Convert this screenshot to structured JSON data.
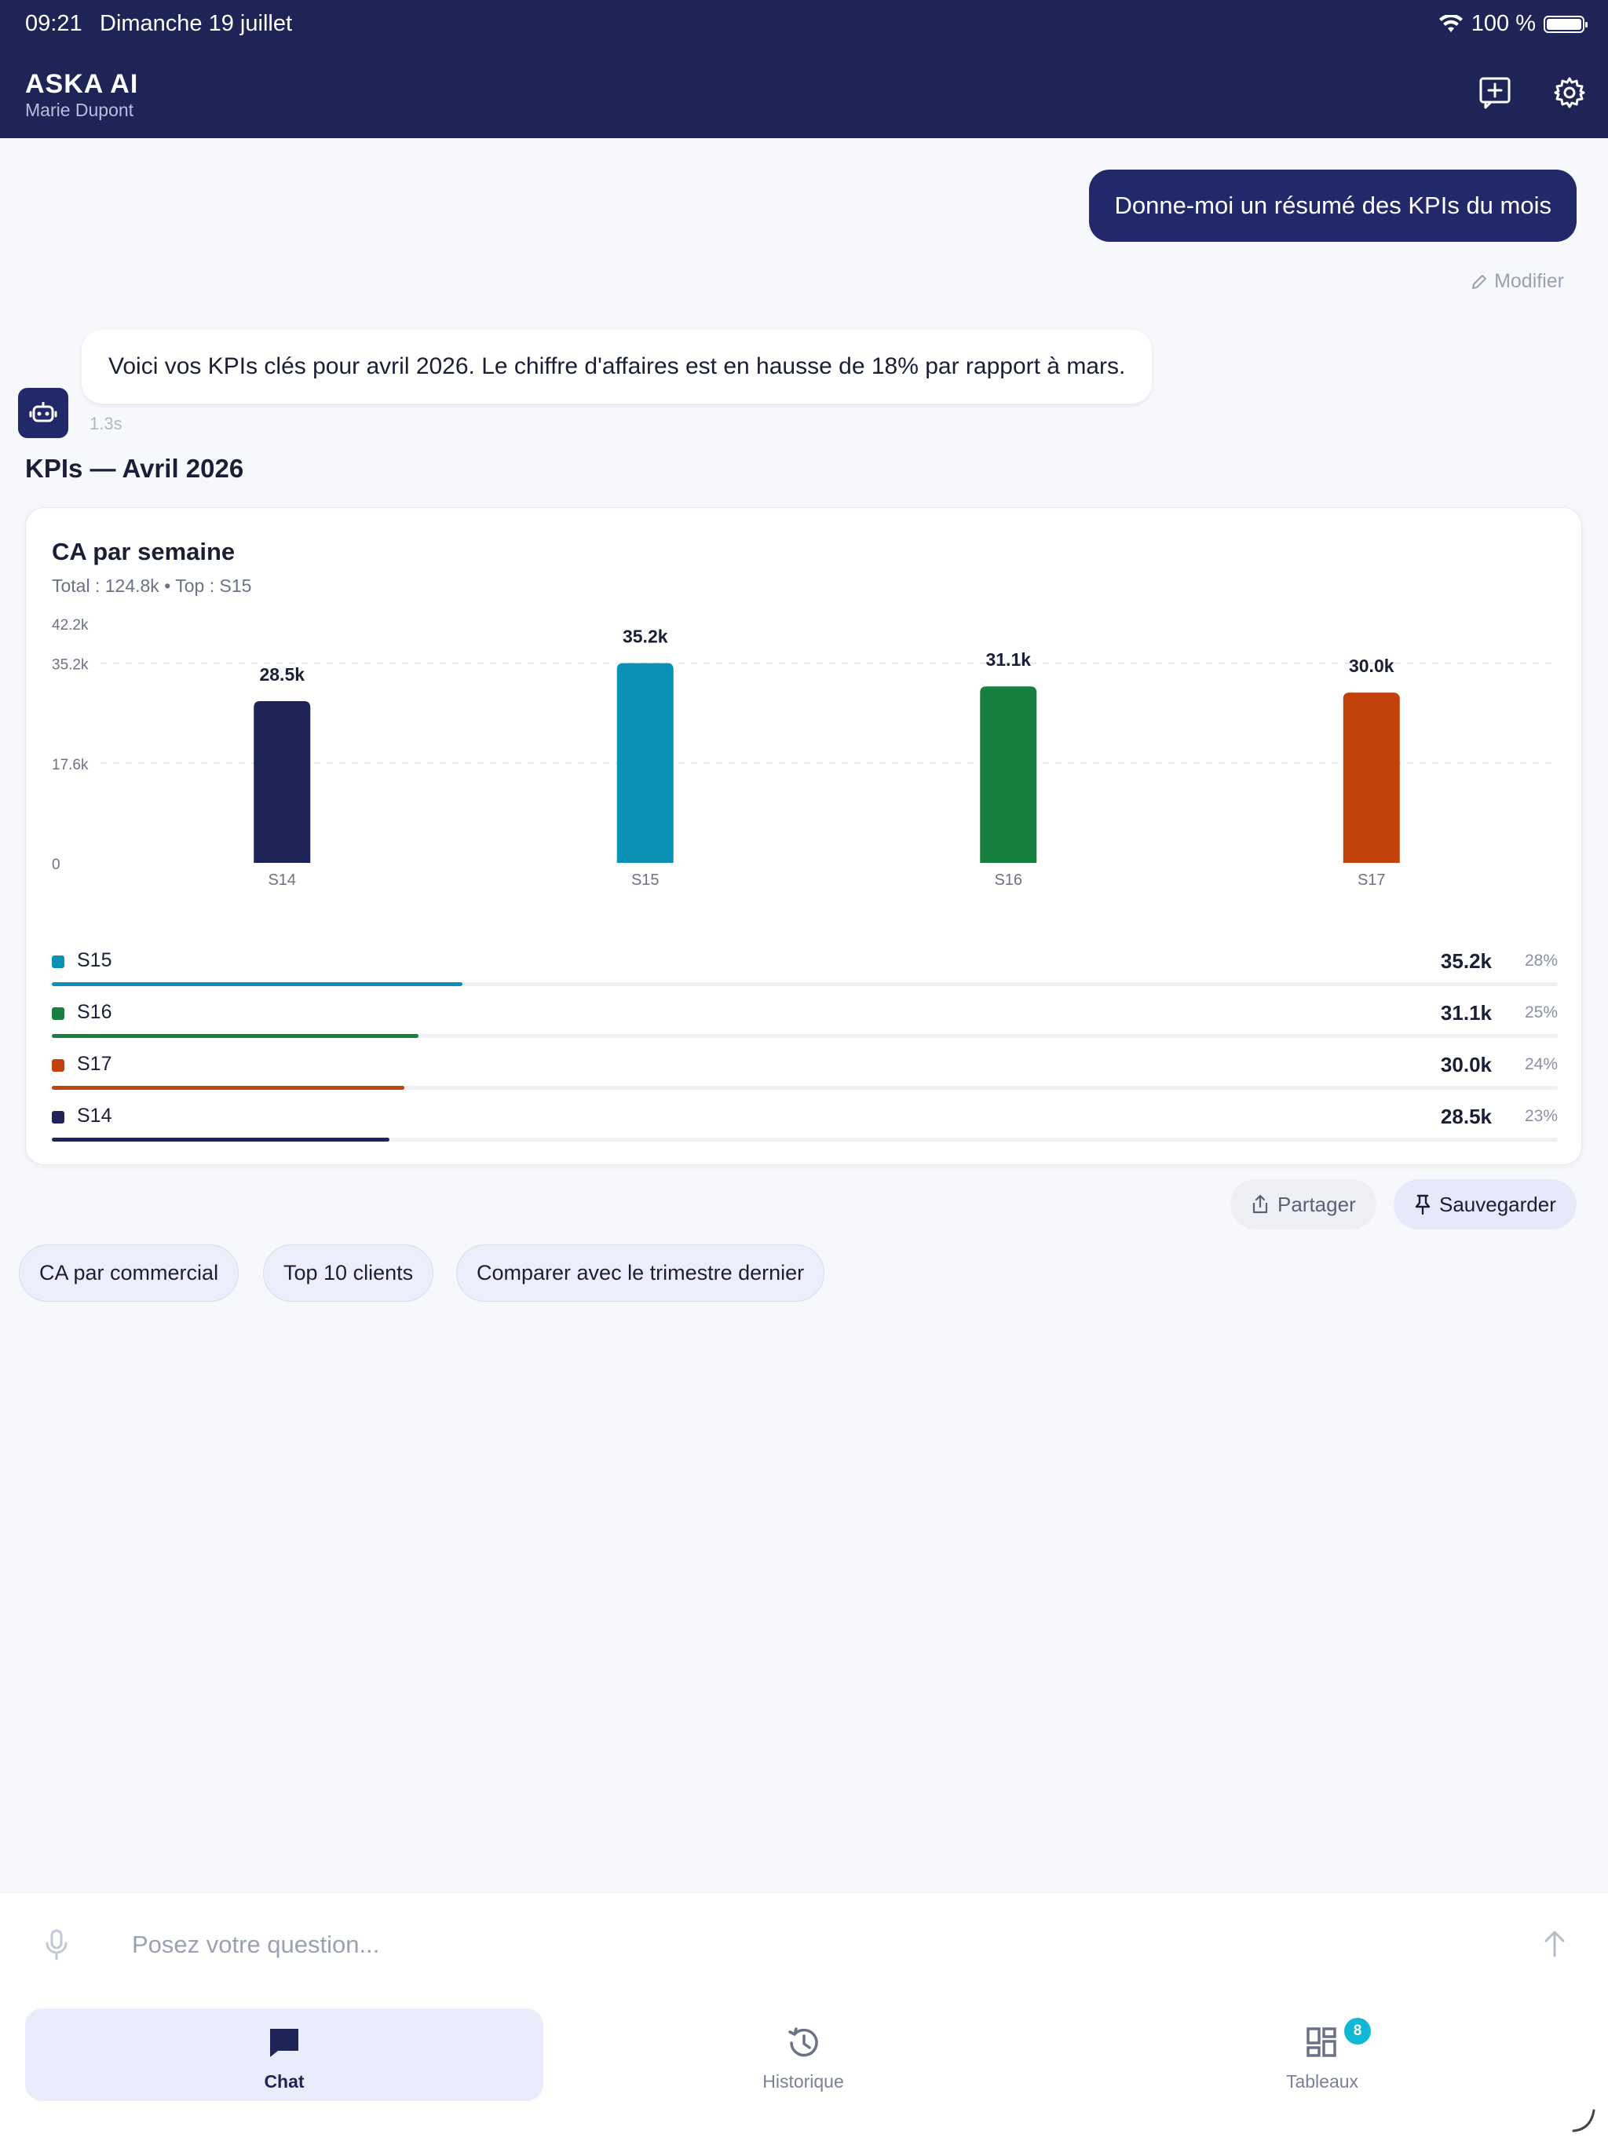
{
  "status": {
    "time": "09:21",
    "date": "Dimanche 19 juillet",
    "battery": "100 %"
  },
  "header": {
    "title": "ASKA AI",
    "subtitle": "Marie Dupont"
  },
  "conversation": {
    "user_message": "Donne-moi un résumé des KPIs du mois",
    "edit_label": "Modifier",
    "ai_message": "Voici vos KPIs clés pour avril 2026. Le chiffre d'affaires est en hausse de 18% par rapport à mars.",
    "latency": "1.3s",
    "section_title": "KPIs — Avril 2026"
  },
  "chart_card": {
    "title": "CA par semaine",
    "subtitle": "Total : 124.8k  •  Top : S15"
  },
  "chart_data": {
    "type": "bar",
    "title": "CA par semaine",
    "categories": [
      "S14",
      "S15",
      "S16",
      "S17"
    ],
    "values": [
      28.5,
      35.2,
      31.1,
      30.0
    ],
    "value_labels": [
      "28.5k",
      "35.2k",
      "31.1k",
      "30.0k"
    ],
    "colors": [
      "#1e2456",
      "#0a91b5",
      "#178040",
      "#c2410c"
    ],
    "y_ticks": [
      0,
      17.6,
      35.2,
      42.2
    ],
    "y_tick_labels": [
      "0",
      "17.6k",
      "35.2k",
      "42.2k"
    ],
    "ylim": [
      0,
      42.2
    ],
    "grid": true,
    "xlabel": "",
    "ylabel": ""
  },
  "legend": [
    {
      "name": "S15",
      "value": "35.2k",
      "pct": "28%",
      "share": 0.28,
      "color": "#0a91b5"
    },
    {
      "name": "S16",
      "value": "31.1k",
      "pct": "25%",
      "share": 0.25,
      "color": "#178040"
    },
    {
      "name": "S17",
      "value": "30.0k",
      "pct": "24%",
      "share": 0.24,
      "color": "#c2410c"
    },
    {
      "name": "S14",
      "value": "28.5k",
      "pct": "23%",
      "share": 0.23,
      "color": "#1e2456"
    }
  ],
  "actions": {
    "share_label": "Partager",
    "save_label": "Sauvegarder"
  },
  "suggestions": [
    "CA par commercial",
    "Top 10 clients",
    "Comparer avec le trimestre dernier"
  ],
  "composer": {
    "placeholder": "Posez votre question..."
  },
  "nav": {
    "items": [
      {
        "label": "Chat",
        "icon": "chat-icon",
        "active": true
      },
      {
        "label": "Historique",
        "icon": "history-icon",
        "active": false
      },
      {
        "label": "Tableaux",
        "icon": "dashboard-icon",
        "active": false,
        "badge": "8"
      }
    ]
  }
}
